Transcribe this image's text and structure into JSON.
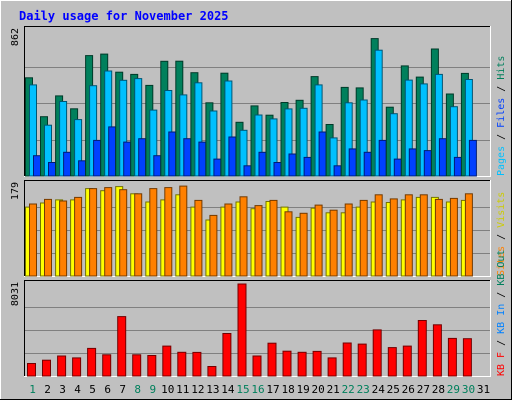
{
  "chart_data": {
    "type": "bar",
    "title": "Daily usage for November 2025",
    "categories": [
      "1",
      "2",
      "3",
      "4",
      "5",
      "6",
      "7",
      "8",
      "9",
      "10",
      "11",
      "12",
      "13",
      "14",
      "15",
      "16",
      "17",
      "18",
      "19",
      "20",
      "21",
      "22",
      "23",
      "24",
      "25",
      "26",
      "27",
      "28",
      "29",
      "30",
      "31"
    ],
    "weekend_days": [
      "1",
      "8",
      "9",
      "15",
      "16",
      "22",
      "23",
      "29",
      "30"
    ],
    "panels": [
      {
        "name": "hits-files-pages",
        "ymax_label": "862",
        "ymax": 862,
        "series": [
          {
            "name": "Hits",
            "color": "#00805c",
            "values": [
              580,
              350,
              473,
              397,
              711,
              720,
              613,
              600,
              535,
              677,
              678,
              610,
              432,
              607,
              317,
              414,
              359,
              434,
              447,
              587,
              304,
              523,
              520,
              811,
              406,
              650,
              584,
              750,
              484,
              606,
              null
            ]
          },
          {
            "name": "Files",
            "color": "#00c0ff",
            "values": [
              538,
              300,
              440,
              333,
              533,
              620,
              565,
              575,
              389,
              505,
              479,
              550,
              384,
              561,
              270,
              360,
              337,
              396,
              400,
              538,
              225,
              432,
              449,
              743,
              368,
              566,
              544,
              600,
              409,
              570,
              null
            ]
          },
          {
            "name": "Pages",
            "color": "#0040ff",
            "values": [
              120,
              80,
              140,
              90,
              210,
              290,
              200,
              220,
              120,
              260,
              220,
              200,
              100,
              230,
              60,
              140,
              80,
              130,
              110,
              260,
              60,
              160,
              140,
              210,
              100,
              160,
              150,
              220,
              110,
              210,
              null
            ]
          }
        ]
      },
      {
        "name": "sites-visits",
        "ymax_label": "179",
        "ymax": 179,
        "series": [
          {
            "name": "Visits",
            "color": "#ffff00",
            "values": [
              134,
              142,
              148,
              148,
              170,
              166,
              174,
              160,
              144,
              148,
              158,
              134,
              109,
              134,
              144,
              131,
              145,
              134,
              114,
              132,
              123,
              123,
              134,
              144,
              143,
              148,
              153,
              153,
              144,
              147,
              null
            ]
          },
          {
            "name": "Sites",
            "color": "#ff8000",
            "values": [
              140,
              149,
              146,
              153,
              170,
              172,
              168,
              160,
              170,
              172,
              175,
              147,
              118,
              140,
              154,
              137,
              147,
              125,
              122,
              138,
              128,
              140,
              147,
              158,
              150,
              158,
              158,
              149,
              151,
              160,
              null
            ]
          }
        ]
      },
      {
        "name": "kbytes",
        "ymax_label": "8031",
        "ymax": 8031,
        "series": [
          {
            "name": "KB F",
            "color": "#ff0000",
            "values": [
              1090,
              1376,
              1750,
              1576,
              2406,
              1854,
              5187,
              1848,
              1789,
              2614,
              2069,
              2063,
              827,
              3706,
              8031,
              1745,
              2867,
              2165,
              2065,
              2147,
              1576,
              2878,
              2783,
              4028,
              2478,
              2612,
              4846,
              4470,
              3282,
              3260,
              null
            ]
          }
        ]
      }
    ],
    "legend": {
      "panel1": [
        "Pages",
        "Files",
        "Hits"
      ],
      "panel2": [
        "Sites",
        "Visits"
      ],
      "panel3": [
        "KB F",
        "KB In",
        "KB Out"
      ]
    },
    "colors": {
      "background": "#c0c0c0",
      "title": "#0000ff",
      "weekday_label": "#000000",
      "weekend_label": "#00805c",
      "kb_in": "#0080ff",
      "kb_out": "#00805c"
    }
  }
}
